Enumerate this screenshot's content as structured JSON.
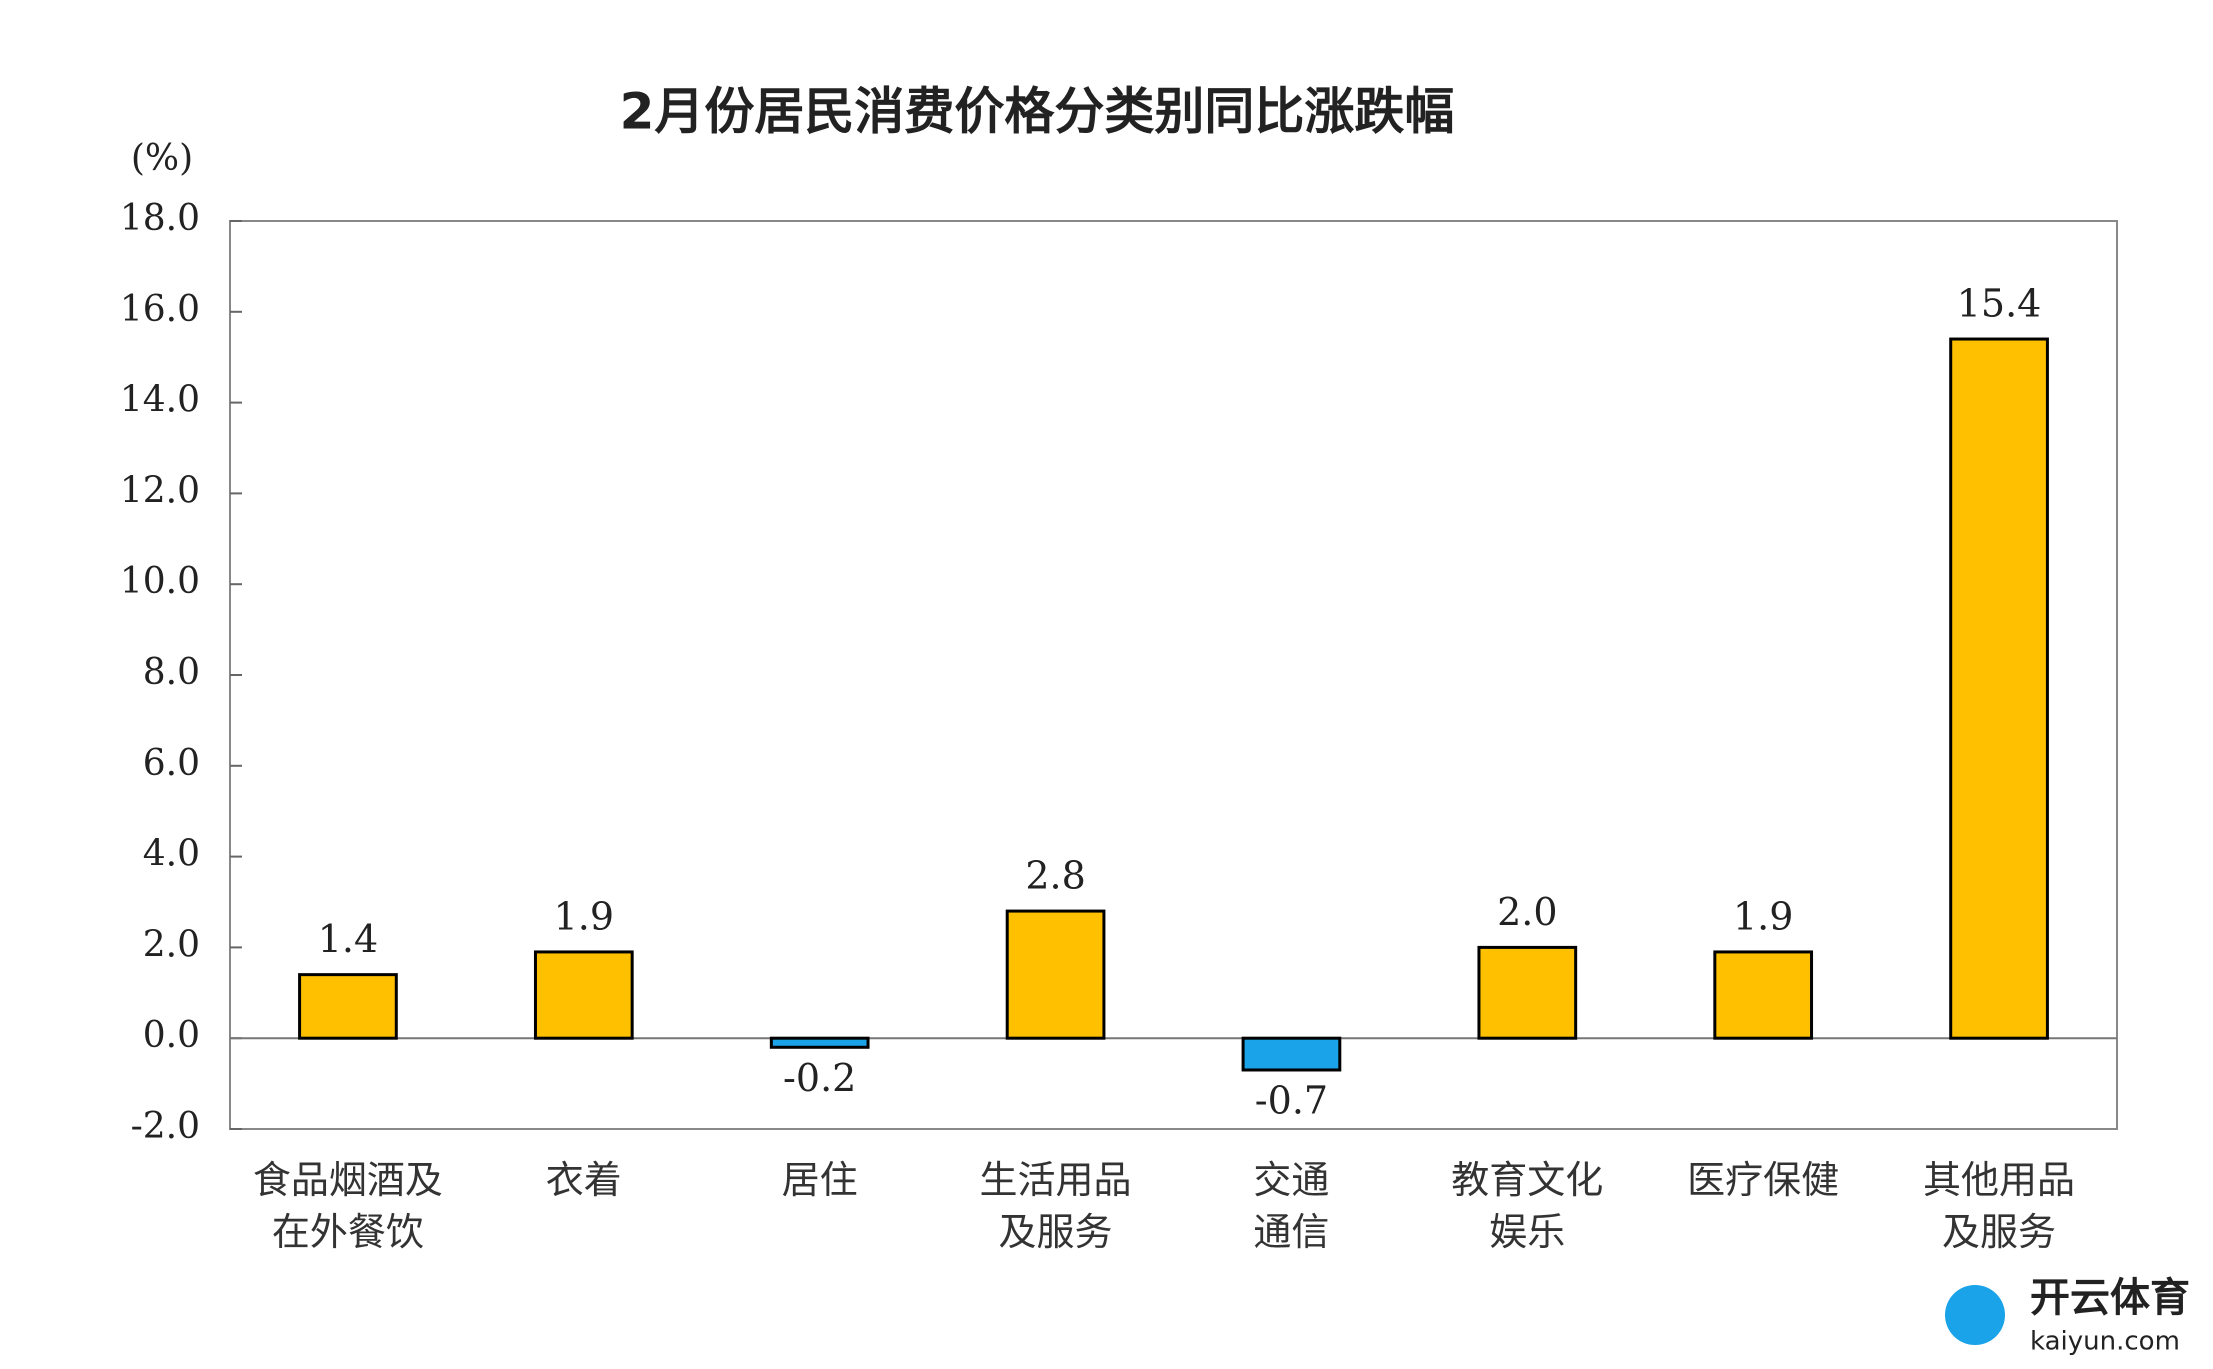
{
  "chart_data": {
    "type": "bar",
    "title": "2月份居民消费价格分类别同比涨跌幅",
    "y_axis_label": "(%)",
    "categories": [
      "食品烟酒及\n在外餐饮",
      "衣着",
      "居住",
      "生活用品\n及服务",
      "交通\n通信",
      "教育文化\n娱乐",
      "医疗保健",
      "其他用品\n及服务"
    ],
    "values": [
      1.4,
      1.9,
      -0.2,
      2.8,
      -0.7,
      2.0,
      1.9,
      15.4
    ],
    "value_labels": [
      "1.4",
      "1.9",
      "-0.2",
      "2.8",
      "-0.7",
      "2.0",
      "1.9",
      "15.4"
    ],
    "colors": [
      "#FFC000",
      "#FFC000",
      "#1AA3E8",
      "#FFC000",
      "#1AA3E8",
      "#FFC000",
      "#FFC000",
      "#FFC000"
    ],
    "ylim": [
      -2,
      18
    ],
    "yticks": [
      {
        "value": -2,
        "label": "-2.0"
      },
      {
        "value": 0,
        "label": "0.0"
      },
      {
        "value": 2,
        "label": "2.0"
      },
      {
        "value": 4,
        "label": "4.0"
      },
      {
        "value": 6,
        "label": "6.0"
      },
      {
        "value": 8,
        "label": "8.0"
      },
      {
        "value": 10,
        "label": "10.0"
      },
      {
        "value": 12,
        "label": "12.0"
      },
      {
        "value": 14,
        "label": "14.0"
      },
      {
        "value": 16,
        "label": "16.0"
      },
      {
        "value": 18,
        "label": "18.0"
      }
    ],
    "grid": false,
    "watermark": {
      "brand": "开云体育",
      "url": "kaiyun.com"
    }
  }
}
